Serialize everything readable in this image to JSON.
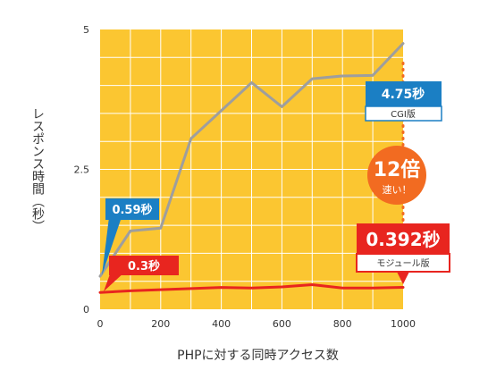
{
  "chart_data": {
    "type": "line",
    "xlabel": "PHPに対する同時アクセス数",
    "ylabel": "レスポンス時間（秒）",
    "xlim": [
      0,
      1000
    ],
    "ylim": [
      0,
      5
    ],
    "x_ticks": [
      "0",
      "200",
      "400",
      "600",
      "800",
      "1000"
    ],
    "y_ticks": [
      "0",
      "2.5",
      "5"
    ],
    "grid": true,
    "series": [
      {
        "name": "CGI版",
        "color": "#9e9e9e",
        "x": [
          0,
          100,
          200,
          300,
          400,
          500,
          600,
          700,
          800,
          900,
          1000
        ],
        "y": [
          0.59,
          1.4,
          1.45,
          3.05,
          3.55,
          4.05,
          3.62,
          4.12,
          4.17,
          4.18,
          4.75
        ]
      },
      {
        "name": "モジュール版",
        "color": "#e8251f",
        "x": [
          0,
          100,
          200,
          300,
          400,
          500,
          600,
          700,
          800,
          900,
          1000
        ],
        "y": [
          0.3,
          0.33,
          0.35,
          0.37,
          0.39,
          0.38,
          0.4,
          0.44,
          0.38,
          0.38,
          0.392
        ]
      }
    ],
    "annotations": {
      "cgi_start": "0.59秒",
      "mod_start": "0.3秒",
      "cgi_end_value": "4.75秒",
      "cgi_end_label": "CGI版",
      "mod_end_value": "0.392秒",
      "mod_end_label": "モジュール版",
      "speedup_big": "12倍",
      "speedup_small": "速い！"
    }
  },
  "colors": {
    "plot_bg": "#fbc631",
    "grid": "#ffffff",
    "cgi_callout": "#1b7fc4",
    "mod_callout": "#e8251f",
    "speedup_circle": "#f26b21",
    "dotted_connector": "#f26b21"
  }
}
